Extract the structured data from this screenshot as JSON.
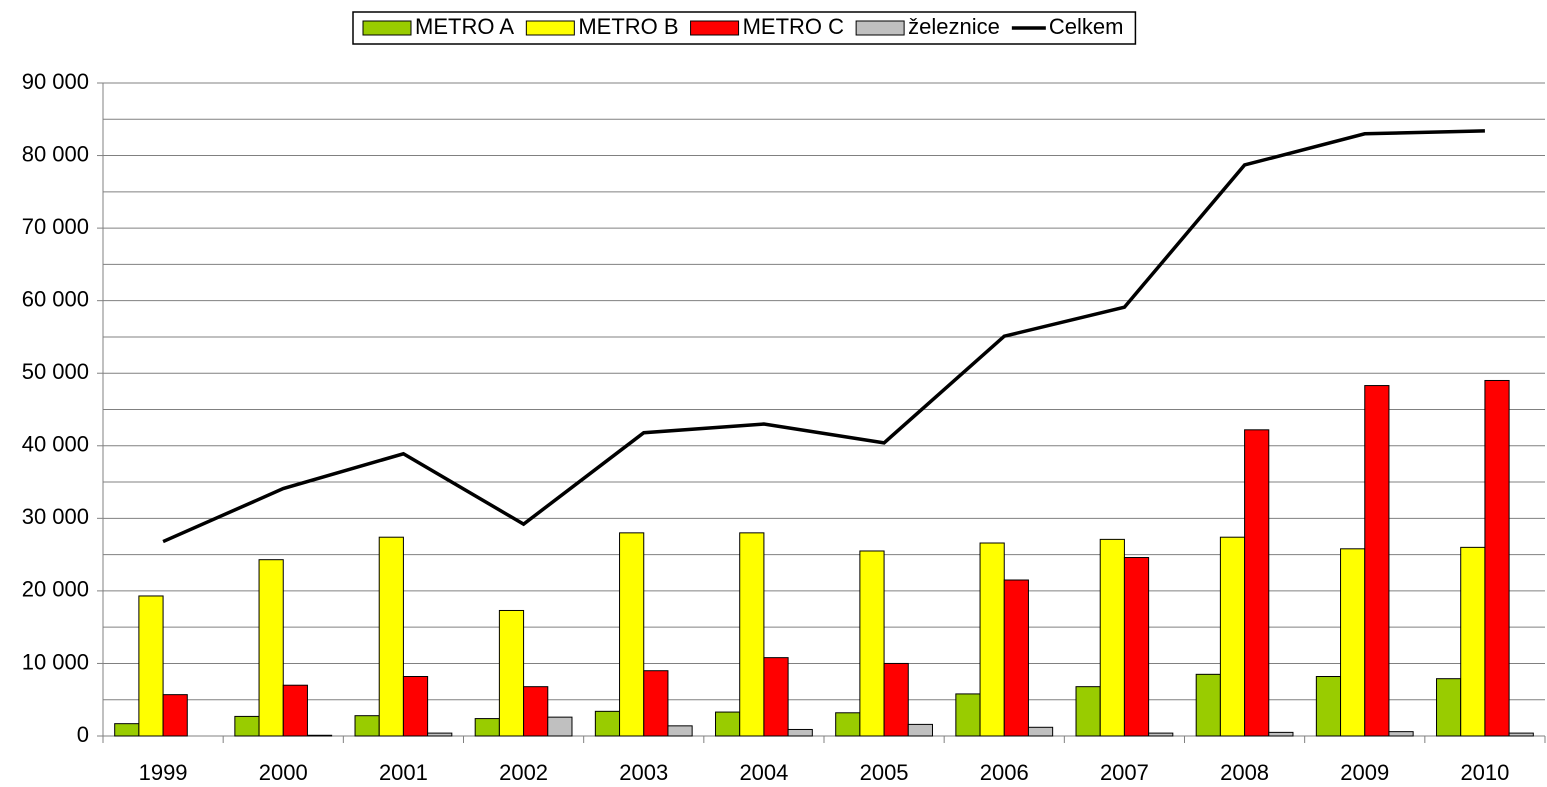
{
  "chart_data": {
    "type": "bar",
    "categories": [
      "1999",
      "2000",
      "2001",
      "2002",
      "2003",
      "2004",
      "2005",
      "2006",
      "2007",
      "2008",
      "2009",
      "2010"
    ],
    "series": [
      {
        "name": "METRO A",
        "color": "#99cc00",
        "values": [
          1700,
          2700,
          2800,
          2400,
          3400,
          3300,
          3200,
          5800,
          6800,
          8500,
          8200,
          7900
        ]
      },
      {
        "name": "METRO B",
        "color": "#ffff00",
        "values": [
          19300,
          24300,
          27400,
          17300,
          28000,
          28000,
          25500,
          26600,
          27100,
          27400,
          25800,
          26000
        ]
      },
      {
        "name": "METRO C",
        "color": "#ff0000",
        "values": [
          5700,
          7000,
          8200,
          6800,
          9000,
          10800,
          10000,
          21500,
          24600,
          42200,
          48300,
          49000
        ]
      },
      {
        "name": "železnice",
        "color": "#c0c0c0",
        "values": [
          0,
          100,
          400,
          2600,
          1400,
          900,
          1600,
          1200,
          400,
          500,
          600,
          400
        ]
      },
      {
        "name": "Celkem",
        "type": "line",
        "color": "#000000",
        "values": [
          26800,
          34100,
          38900,
          29200,
          41800,
          43000,
          40400,
          55100,
          59100,
          78700,
          83000,
          83400
        ]
      }
    ],
    "ylim": [
      0,
      90000
    ],
    "yticks": [
      {
        "value": 0,
        "label": "0"
      },
      {
        "value": 10000,
        "label": "10 000"
      },
      {
        "value": 20000,
        "label": "20 000"
      },
      {
        "value": 30000,
        "label": "30 000"
      },
      {
        "value": 40000,
        "label": "40 000"
      },
      {
        "value": 50000,
        "label": "50 000"
      },
      {
        "value": 60000,
        "label": "60 000"
      },
      {
        "value": 70000,
        "label": "70 000"
      },
      {
        "value": 80000,
        "label": "80 000"
      },
      {
        "value": 90000,
        "label": "90 000"
      }
    ],
    "minor_grid": [
      5000,
      15000,
      25000,
      35000,
      45000,
      55000,
      65000,
      75000,
      85000
    ],
    "grid": true,
    "legend": "top"
  }
}
